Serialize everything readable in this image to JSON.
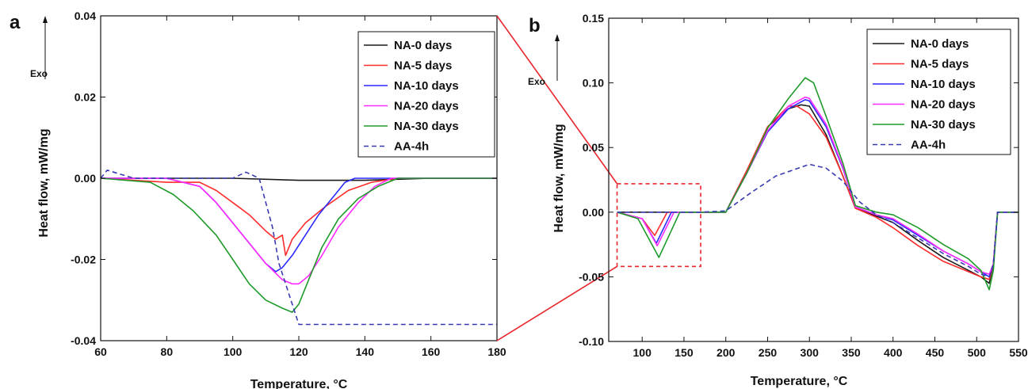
{
  "figure": {
    "zoom_box_color": "#e8252b",
    "charts": [
      {
        "panel_label": "a",
        "type": "line",
        "xlabel": "Temperature, °C",
        "ylabel": "Heat flow, mW/mg",
        "annotation": "Exo",
        "xlim": [
          60,
          180
        ],
        "ylim": [
          -0.04,
          0.04
        ],
        "xticks": [
          60,
          80,
          100,
          120,
          140,
          160,
          180
        ],
        "yticks": [
          -0.04,
          -0.02,
          0.0,
          0.02,
          0.04
        ],
        "xtick_labels": [
          "60",
          "80",
          "100",
          "120",
          "140",
          "160",
          "180"
        ],
        "ytick_labels": [
          "-0.04",
          "-0.02",
          "0.00",
          "0.02",
          "0.04"
        ],
        "legend_position": "top-right",
        "series": [
          {
            "name": "NA-0 days",
            "color": "#1a1a1a",
            "dash": "solid",
            "x": [
              60,
              80,
              100,
              120,
              140,
              160,
              180
            ],
            "y": [
              0.0,
              0.0,
              0.0,
              -0.0005,
              -0.0005,
              0.0,
              0.0
            ]
          },
          {
            "name": "NA-5 days",
            "color": "#ff2a2a",
            "dash": "solid",
            "x": [
              60,
              80,
              90,
              95,
              100,
              105,
              110,
              113,
              115,
              116,
              118,
              122,
              128,
              135,
              142,
              150,
              180
            ],
            "y": [
              0.0,
              -0.001,
              -0.001,
              -0.003,
              -0.006,
              -0.009,
              -0.013,
              -0.015,
              -0.014,
              -0.019,
              -0.015,
              -0.011,
              -0.007,
              -0.003,
              -0.001,
              0.0,
              0.0
            ]
          },
          {
            "name": "NA-10 days",
            "color": "#2a2aff",
            "dash": "solid",
            "x": [
              60,
              80,
              90,
              95,
              100,
              105,
              110,
              113,
              115,
              118,
              122,
              126,
              130,
              134,
              137,
              140,
              180
            ],
            "y": [
              0.0,
              0.0,
              -0.002,
              -0.006,
              -0.011,
              -0.016,
              -0.021,
              -0.023,
              -0.022,
              -0.019,
              -0.014,
              -0.009,
              -0.005,
              -0.001,
              0.0,
              0.0,
              0.0
            ]
          },
          {
            "name": "NA-20 days",
            "color": "#ff2aff",
            "dash": "solid",
            "x": [
              60,
              80,
              90,
              95,
              100,
              105,
              110,
              115,
              118,
              120,
              123,
              127,
              132,
              138,
              143,
              148,
              180
            ],
            "y": [
              0.0,
              0.0,
              -0.002,
              -0.006,
              -0.011,
              -0.016,
              -0.021,
              -0.025,
              -0.026,
              -0.026,
              -0.024,
              -0.019,
              -0.012,
              -0.006,
              -0.002,
              0.0,
              0.0
            ]
          },
          {
            "name": "NA-30 days",
            "color": "#1f9a2a",
            "dash": "solid",
            "x": [
              60,
              75,
              82,
              88,
              95,
              100,
              105,
              110,
              115,
              118,
              120,
              123,
              127,
              132,
              138,
              144,
              150,
              180
            ],
            "y": [
              0.0,
              -0.001,
              -0.004,
              -0.008,
              -0.014,
              -0.02,
              -0.026,
              -0.03,
              -0.032,
              -0.033,
              -0.031,
              -0.025,
              -0.017,
              -0.01,
              -0.005,
              -0.002,
              0.0,
              0.0
            ]
          },
          {
            "name": "AA-4h",
            "color": "#3a3ab0",
            "dash": "dashed",
            "x": [
              60,
              62,
              70,
              100,
              104,
              108,
              112,
              114,
              118,
              120,
              180
            ],
            "y": [
              0.0,
              0.002,
              0.0,
              0.0,
              0.0015,
              0.0,
              -0.012,
              -0.021,
              -0.031,
              -0.036,
              -0.036
            ]
          }
        ]
      },
      {
        "panel_label": "b",
        "type": "line",
        "xlabel": "Temperature, °C",
        "ylabel": "Heat flow, mW/mg",
        "annotation": "Exo",
        "xlim": [
          60,
          550
        ],
        "ylim": [
          -0.1,
          0.15
        ],
        "xticks": [
          100,
          150,
          200,
          250,
          300,
          350,
          400,
          450,
          500,
          550
        ],
        "yticks": [
          -0.1,
          -0.05,
          0.0,
          0.05,
          0.1,
          0.15
        ],
        "xtick_labels": [
          "100",
          "150",
          "200",
          "250",
          "300",
          "350",
          "400",
          "450",
          "500",
          "550"
        ],
        "ytick_labels": [
          "-0.10",
          "-0.05",
          "0.00",
          "0.05",
          "0.10",
          "0.15"
        ],
        "legend_position": "top-right",
        "zoom_region": {
          "x": [
            70,
            170
          ],
          "y": [
            -0.042,
            0.022
          ]
        },
        "series": [
          {
            "name": "NA-0 days",
            "color": "#1a1a1a",
            "dash": "solid",
            "x": [
              70,
              100,
              115,
              140,
              200,
              225,
              250,
              275,
              290,
              300,
              320,
              340,
              355,
              380,
              400,
              430,
              460,
              490,
              505,
              515,
              520,
              525,
              550
            ],
            "y": [
              0.0,
              0.0,
              0.0,
              0.0,
              0.0,
              0.032,
              0.066,
              0.08,
              0.083,
              0.082,
              0.06,
              0.028,
              0.003,
              -0.003,
              -0.008,
              -0.022,
              -0.035,
              -0.045,
              -0.05,
              -0.055,
              -0.04,
              0.0,
              0.0
            ]
          },
          {
            "name": "NA-5 days",
            "color": "#ff2a2a",
            "dash": "solid",
            "x": [
              70,
              100,
              115,
              130,
              200,
              225,
              250,
              275,
              285,
              300,
              320,
              340,
              355,
              380,
              400,
              430,
              460,
              490,
              505,
              515,
              520,
              525,
              550
            ],
            "y": [
              0.0,
              -0.005,
              -0.018,
              0.0,
              0.0,
              0.032,
              0.066,
              0.082,
              0.082,
              0.076,
              0.058,
              0.028,
              0.003,
              -0.004,
              -0.012,
              -0.026,
              -0.038,
              -0.046,
              -0.05,
              -0.052,
              -0.04,
              0.0,
              0.0
            ]
          },
          {
            "name": "NA-10 days",
            "color": "#2a2aff",
            "dash": "solid",
            "x": [
              70,
              100,
              117,
              135,
              200,
              225,
              250,
              275,
              295,
              300,
              320,
              340,
              355,
              380,
              400,
              430,
              460,
              490,
              505,
              515,
              520,
              525,
              550
            ],
            "y": [
              0.0,
              -0.005,
              -0.024,
              0.0,
              0.0,
              0.03,
              0.062,
              0.08,
              0.087,
              0.086,
              0.066,
              0.034,
              0.004,
              -0.002,
              -0.006,
              -0.018,
              -0.03,
              -0.04,
              -0.046,
              -0.05,
              -0.04,
              0.0,
              0.0
            ]
          },
          {
            "name": "NA-20 days",
            "color": "#ff2aff",
            "dash": "solid",
            "x": [
              70,
              100,
              118,
              138,
              200,
              225,
              250,
              275,
              295,
              300,
              320,
              340,
              355,
              380,
              400,
              430,
              460,
              490,
              505,
              515,
              520,
              525,
              550
            ],
            "y": [
              0.0,
              -0.005,
              -0.026,
              0.0,
              0.0,
              0.03,
              0.063,
              0.082,
              0.089,
              0.088,
              0.068,
              0.035,
              0.004,
              -0.002,
              -0.005,
              -0.017,
              -0.03,
              -0.04,
              -0.046,
              -0.048,
              -0.04,
              0.0,
              0.0
            ]
          },
          {
            "name": "NA-30 days",
            "color": "#1f9a2a",
            "dash": "solid",
            "x": [
              70,
              95,
              120,
              145,
              200,
              225,
              250,
              275,
              295,
              305,
              320,
              340,
              355,
              380,
              400,
              430,
              460,
              490,
              505,
              515,
              520,
              525,
              550
            ],
            "y": [
              0.0,
              -0.005,
              -0.035,
              0.0,
              0.0,
              0.03,
              0.065,
              0.088,
              0.104,
              0.1,
              0.074,
              0.038,
              0.005,
              0.0,
              -0.002,
              -0.012,
              -0.025,
              -0.036,
              -0.045,
              -0.06,
              -0.045,
              0.0,
              0.0
            ]
          },
          {
            "name": "AA-4h",
            "color": "#3a3ab0",
            "dash": "dashed",
            "x": [
              70,
              100,
              120,
              170,
              200,
              230,
              260,
              300,
              320,
              340,
              360,
              380,
              400,
              430,
              460,
              490,
              505,
              515,
              520,
              525,
              550
            ],
            "y": [
              0.0,
              0.0,
              0.0,
              0.0,
              0.001,
              0.015,
              0.028,
              0.037,
              0.034,
              0.024,
              0.008,
              -0.002,
              -0.008,
              -0.02,
              -0.032,
              -0.042,
              -0.048,
              -0.05,
              -0.04,
              0.0,
              0.0
            ]
          }
        ]
      }
    ]
  }
}
